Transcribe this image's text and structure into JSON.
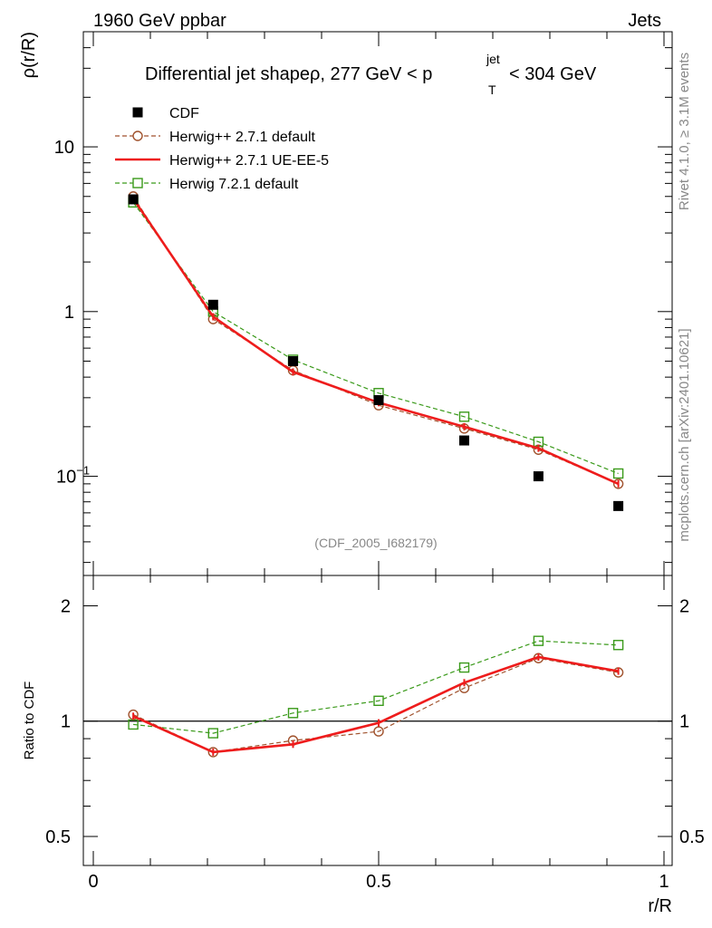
{
  "header": {
    "left": "1960 GeV ppbar",
    "right": "Jets"
  },
  "side": {
    "rivet": "Rivet 4.1.0, ≥ 3.1M events",
    "mcplots": "mcplots.cern.ch [arXiv:2401.10621]"
  },
  "title": {
    "prefix": "Differential jet shapeρ, 277 GeV < p",
    "sup": "jet",
    "sub": "T",
    "suffix": " < 304 GeV"
  },
  "analysis_label": "(CDF_2005_I682179)",
  "chart_data": [
    {
      "type": "line",
      "panel": "main",
      "title": "Differential jet shapeρ, 277 GeV < p_T^jet < 304 GeV",
      "xlabel": "r/R",
      "ylabel": "ρ(r/R)",
      "yscale": "log",
      "xlim": [
        0,
        1
      ],
      "ylim": [
        0.025,
        50
      ],
      "x": [
        0.07,
        0.21,
        0.35,
        0.5,
        0.65,
        0.78,
        0.92
      ],
      "yticks": [
        {
          "value": 10,
          "label": "10"
        },
        {
          "value": 1,
          "label": "1"
        },
        {
          "value": 0.1,
          "label": "10",
          "sup": "−1"
        }
      ],
      "legend_position": "top-left",
      "series": [
        {
          "name": "CDF",
          "style": "data-square",
          "color": "#000000",
          "values": [
            4.8,
            1.1,
            0.5,
            0.29,
            0.165,
            0.1,
            0.066
          ]
        },
        {
          "name": "Herwig++ 2.7.1 default",
          "style": "dashed-circle",
          "color": "#a0522d",
          "values": [
            5.0,
            0.9,
            0.44,
            0.27,
            0.195,
            0.145,
            0.09
          ]
        },
        {
          "name": "Herwig++ 2.7.1 UE-EE-5",
          "style": "solid",
          "color": "#ee1c1c",
          "values": [
            4.85,
            0.93,
            0.43,
            0.28,
            0.2,
            0.148,
            0.09
          ]
        },
        {
          "name": "Herwig 7.2.1 default",
          "style": "dashed-square",
          "color": "#3a9a1a",
          "values": [
            4.6,
            1.0,
            0.51,
            0.32,
            0.23,
            0.162,
            0.104
          ]
        }
      ]
    },
    {
      "type": "line",
      "panel": "ratio",
      "xlabel": "r/R",
      "ylabel": "Ratio to CDF",
      "yscale": "log",
      "xlim": [
        0,
        1
      ],
      "ylim": [
        0.42,
        2.4
      ],
      "reference_line": 1,
      "x": [
        0.07,
        0.21,
        0.35,
        0.5,
        0.65,
        0.78,
        0.92
      ],
      "xticks": [
        {
          "value": 0,
          "label": "0"
        },
        {
          "value": 0.5,
          "label": "0.5"
        },
        {
          "value": 1,
          "label": "1"
        }
      ],
      "yticks": [
        {
          "value": 2,
          "label": "2"
        },
        {
          "value": 1,
          "label": "1"
        },
        {
          "value": 0.5,
          "label": "0.5"
        }
      ],
      "series": [
        {
          "name": "Herwig++ 2.7.1 default",
          "style": "dashed-circle",
          "color": "#a0522d",
          "values": [
            1.04,
            0.83,
            0.89,
            0.94,
            1.22,
            1.46,
            1.34
          ]
        },
        {
          "name": "Herwig++ 2.7.1 UE-EE-5",
          "style": "solid",
          "color": "#ee1c1c",
          "values": [
            1.03,
            0.83,
            0.87,
            0.99,
            1.26,
            1.47,
            1.35
          ]
        },
        {
          "name": "Herwig 7.2.1 default",
          "style": "dashed-square",
          "color": "#3a9a1a",
          "values": [
            0.98,
            0.93,
            1.05,
            1.13,
            1.38,
            1.62,
            1.58
          ]
        }
      ]
    }
  ]
}
